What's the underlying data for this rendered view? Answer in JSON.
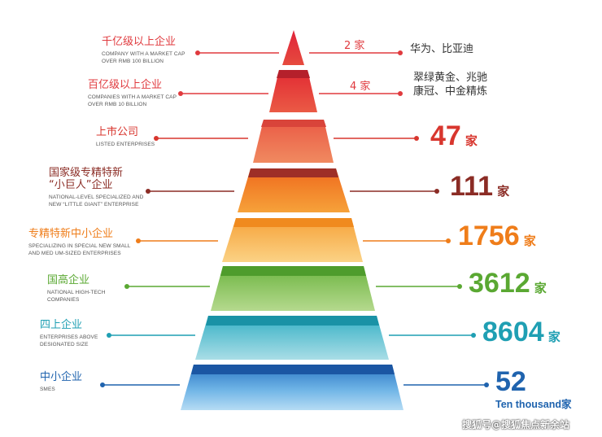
{
  "tiers": [
    {
      "title_lines": [
        "千亿级以上企业"
      ],
      "en_lines": [
        "COMPANY WITH A MARKET CAP",
        "OVER RMB 100 BILLION"
      ],
      "count": "2 家",
      "names": [
        "华为、比亚迪"
      ],
      "color": "#e03a3e"
    },
    {
      "title_lines": [
        "百亿级以上企业"
      ],
      "en_lines": [
        "COMPANIES WITH A MARKET CAP",
        "OVER RMB 10 BILLION"
      ],
      "count": "4 家",
      "names": [
        "翠绿黄金、兆驰",
        "康冠、中金精炼"
      ],
      "color": "#e03a3e"
    },
    {
      "title_lines": [
        "上市公司"
      ],
      "en_lines": [
        "LISTED  ENTERPRISES"
      ],
      "value": "47",
      "unit": "家",
      "color": "#d8362e"
    },
    {
      "title_lines": [
        "国家级专精特新",
        "“小巨人”企业"
      ],
      "en_lines": [
        "NATIONAL-LEVEL SPECIALIZED AND",
        "NEW “LITTLE GIANT” ENTERPRISE"
      ],
      "value": "111",
      "unit": "家",
      "color": "#8b2c25"
    },
    {
      "title_lines": [
        "专精特新中小企业"
      ],
      "en_lines": [
        "SPECIALIZING IN SPECIAL NEW SMALL",
        "AND MED UM-SIZED ENTERPRISES"
      ],
      "value": "1756",
      "unit": "家",
      "color": "#ef7d1a"
    },
    {
      "title_lines": [
        "国高企业"
      ],
      "en_lines": [
        "NATIONAL HIGH-TECH",
        "COMPANIES"
      ],
      "value": "3612",
      "unit": "家",
      "color": "#5aa832"
    },
    {
      "title_lines": [
        "四上企业"
      ],
      "en_lines": [
        "ENTERPRISES ABOVE",
        "DESIGNATED SIZE"
      ],
      "value": "8604",
      "unit": "家",
      "color": "#1f9fb3"
    },
    {
      "title_lines": [
        "中小企业"
      ],
      "en_lines": [
        "SMES"
      ],
      "value": "52",
      "unit": "Ten thousand家",
      "color": "#1f63ae"
    }
  ],
  "watermark": "搜狐号@搜狐焦点新余站",
  "colors": {
    "red": "#e03a3e",
    "dark_red": "#8b2c25",
    "orange": "#ef7d1a",
    "green": "#5aa832",
    "teal": "#1f9fb3",
    "blue": "#1f63ae"
  }
}
